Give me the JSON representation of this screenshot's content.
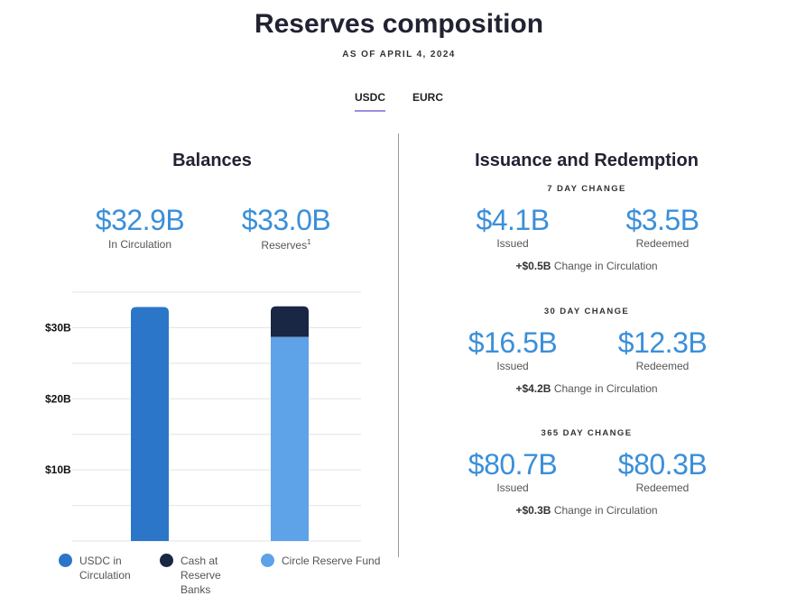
{
  "header": {
    "title": "Reserves composition",
    "as_of": "AS OF APRIL 4, 2024"
  },
  "tabs": [
    {
      "label": "USDC",
      "active": true
    },
    {
      "label": "EURC",
      "active": false
    }
  ],
  "balances": {
    "title": "Balances",
    "stats": [
      {
        "value": "$32.9B",
        "label": "In Circulation"
      },
      {
        "value": "$33.0B",
        "label": "Reserves",
        "footnote": "1"
      }
    ]
  },
  "chart_data": {
    "type": "bar",
    "title": "Balances",
    "categories": [
      "USDC in Circulation",
      "Reserves"
    ],
    "series": [
      {
        "name": "USDC in Circulation",
        "color": "#2b76c9",
        "values": [
          32.9,
          0
        ]
      },
      {
        "name": "Circle Reserve Fund",
        "color": "#5ea2e8",
        "values": [
          0,
          28.7
        ]
      },
      {
        "name": "Cash at Reserve Banks",
        "color": "#192744",
        "values": [
          0,
          4.3
        ]
      }
    ],
    "stacked": true,
    "ylim": [
      0,
      35
    ],
    "yticks": [
      {
        "v": 10,
        "label": "$10B"
      },
      {
        "v": 20,
        "label": "$20B"
      },
      {
        "v": 30,
        "label": "$30B"
      }
    ],
    "grid_step": 5,
    "legend": [
      {
        "label": "USDC in Circulation",
        "color": "#2b76c9"
      },
      {
        "label": "Cash at Reserve Banks",
        "color": "#192744"
      },
      {
        "label": "Circle Reserve Fund",
        "color": "#5ea2e8"
      }
    ],
    "legend_position": "bottom"
  },
  "issuance": {
    "title": "Issuance and Redemption",
    "periods": [
      {
        "heading": "7 DAY CHANGE",
        "issued": "$4.1B",
        "issued_label": "Issued",
        "redeemed": "$3.5B",
        "redeemed_label": "Redeemed",
        "change": "+$0.5B",
        "change_label": "Change in Circulation"
      },
      {
        "heading": "30 DAY CHANGE",
        "issued": "$16.5B",
        "issued_label": "Issued",
        "redeemed": "$12.3B",
        "redeemed_label": "Redeemed",
        "change": "+$4.2B",
        "change_label": "Change in Circulation"
      },
      {
        "heading": "365 DAY CHANGE",
        "issued": "$80.7B",
        "issued_label": "Issued",
        "redeemed": "$80.3B",
        "redeemed_label": "Redeemed",
        "change": "+$0.3B",
        "change_label": "Change in Circulation"
      }
    ]
  }
}
